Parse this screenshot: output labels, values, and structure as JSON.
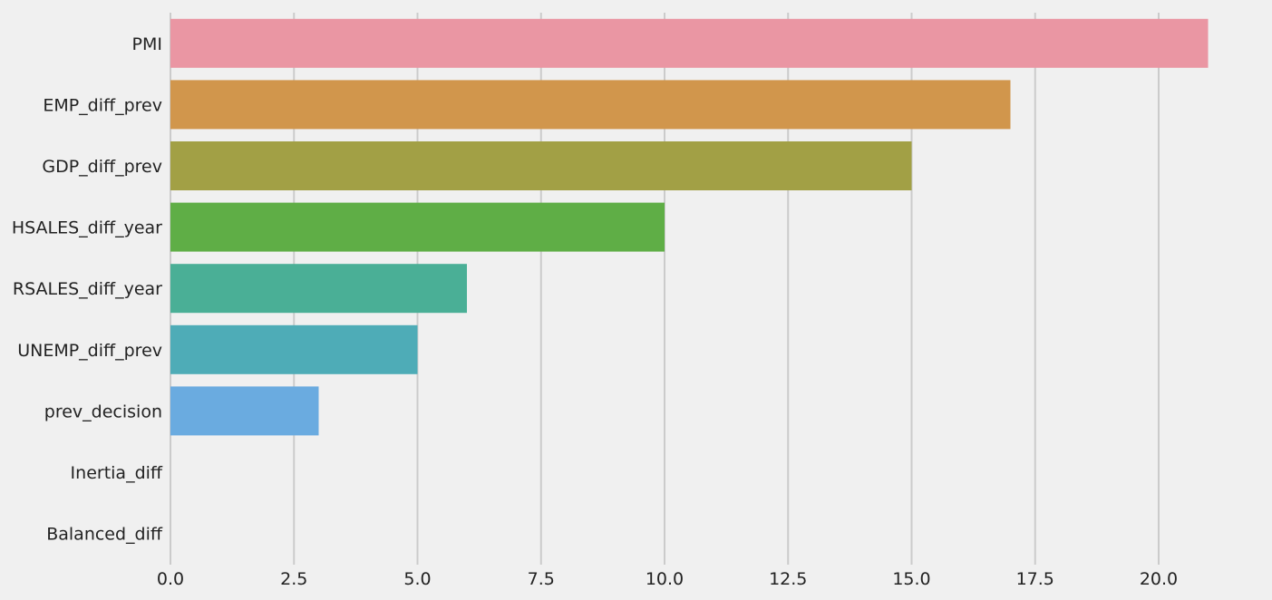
{
  "chart_data": {
    "type": "bar",
    "orientation": "horizontal",
    "title": "",
    "xlabel": "",
    "ylabel": "",
    "categories": [
      "PMI",
      "EMP_diff_prev",
      "GDP_diff_prev",
      "HSALES_diff_year",
      "RSALES_diff_year",
      "UNEMP_diff_prev",
      "prev_decision",
      "Inertia_diff",
      "Balanced_diff"
    ],
    "values": [
      21,
      17,
      15,
      10,
      6,
      5,
      3,
      0,
      0
    ],
    "colors": [
      "#ea96a3",
      "#d1964c",
      "#a2a045",
      "#5fae46",
      "#4aaf96",
      "#4eacb7",
      "#6aabe0",
      "#b6a6e8",
      "#e691d8"
    ],
    "xlim": [
      0,
      22
    ],
    "xticks": [
      0.0,
      2.5,
      5.0,
      7.5,
      10.0,
      12.5,
      15.0,
      17.5,
      20.0
    ],
    "xtick_labels": [
      "0.0",
      "2.5",
      "5.0",
      "7.5",
      "10.0",
      "12.5",
      "15.0",
      "17.5",
      "20.0"
    ],
    "grid": "vertical",
    "background": "#f0f0f0",
    "gridcolor": "#cbcbcb"
  }
}
